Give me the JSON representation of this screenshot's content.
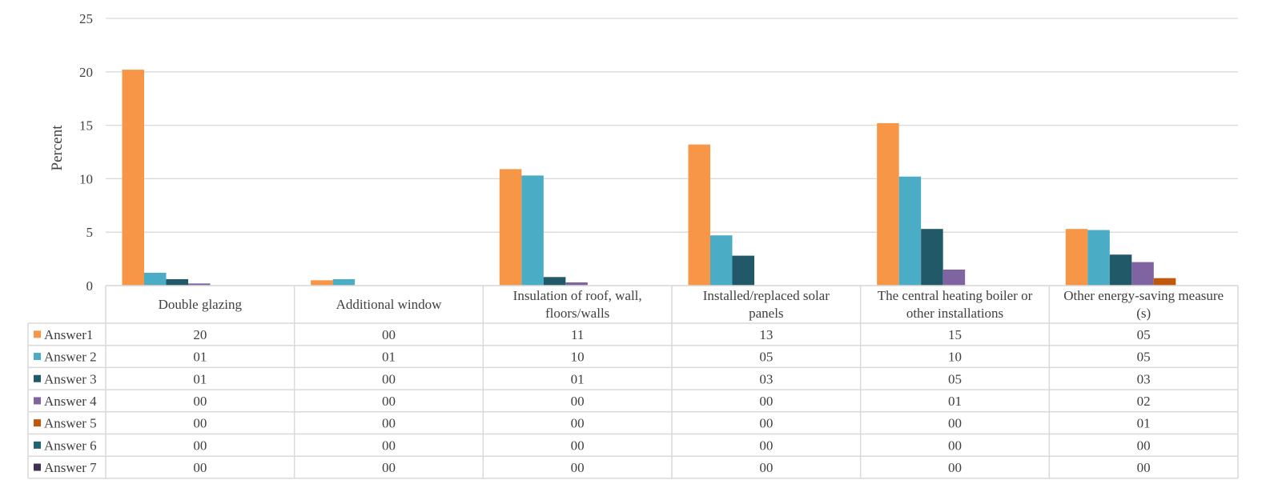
{
  "chart_data": {
    "type": "bar",
    "ylabel": "Percent",
    "ylim": [
      0,
      25
    ],
    "yticks": [
      0,
      5,
      10,
      15,
      20,
      25
    ],
    "grid": true,
    "legend": "data-table",
    "categories": [
      [
        "Double glazing"
      ],
      [
        "Additional window"
      ],
      [
        "Insulation of roof, wall,",
        "floors/walls"
      ],
      [
        "Installed/replaced solar",
        "panels"
      ],
      [
        "The central heating boiler or",
        "other installations"
      ],
      [
        "Other energy-saving measure",
        "(s)"
      ]
    ],
    "series": [
      {
        "name": "Answer1",
        "color": "#F79646",
        "values": [
          20.2,
          0.5,
          10.9,
          13.2,
          15.2,
          5.3
        ],
        "labels": [
          "20",
          "00",
          "11",
          "13",
          "15",
          "05"
        ]
      },
      {
        "name": "Answer 2",
        "color": "#4BACC6",
        "values": [
          1.2,
          0.6,
          10.3,
          4.7,
          10.2,
          5.2
        ],
        "labels": [
          "01",
          "01",
          "10",
          "05",
          "10",
          "05"
        ]
      },
      {
        "name": "Answer 3",
        "color": "#215968",
        "values": [
          0.6,
          0,
          0.8,
          2.8,
          5.3,
          2.9
        ],
        "labels": [
          "01",
          "00",
          "01",
          "03",
          "05",
          "03"
        ]
      },
      {
        "name": "Answer 4",
        "color": "#8064A2",
        "values": [
          0.2,
          0,
          0.3,
          0,
          1.5,
          2.2
        ],
        "labels": [
          "00",
          "00",
          "00",
          "00",
          "01",
          "02"
        ]
      },
      {
        "name": "Answer 5",
        "color": "#C0580E",
        "values": [
          0,
          0,
          0,
          0,
          0,
          0.7
        ],
        "labels": [
          "00",
          "00",
          "00",
          "00",
          "00",
          "01"
        ]
      },
      {
        "name": "Answer 6",
        "color": "#1F6574",
        "values": [
          0,
          0,
          0,
          0,
          0,
          0
        ],
        "labels": [
          "00",
          "00",
          "00",
          "00",
          "00",
          "00"
        ]
      },
      {
        "name": "Answer 7",
        "color": "#403152",
        "values": [
          0,
          0,
          0,
          0,
          0,
          0
        ],
        "labels": [
          "00",
          "00",
          "00",
          "00",
          "00",
          "00"
        ]
      }
    ]
  }
}
